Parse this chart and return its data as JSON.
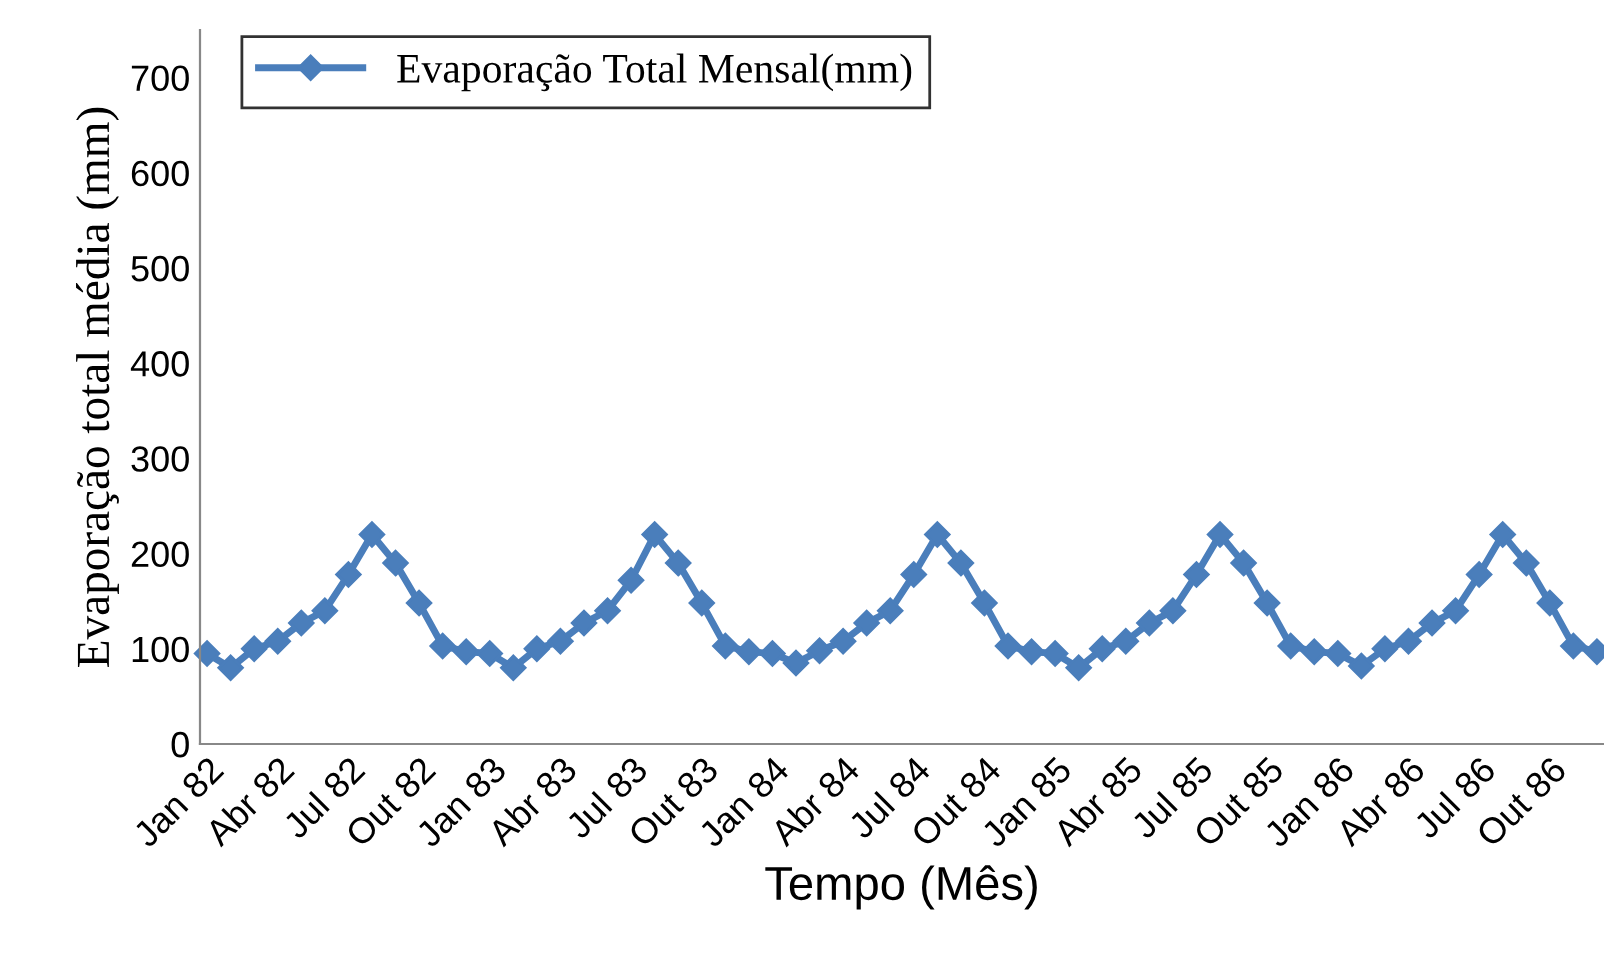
{
  "chart_data": {
    "type": "line",
    "xlabel": "Tempo (Mês)",
    "ylabel": "Evaporação total média (mm)",
    "categories": [
      "Jan 82",
      null,
      null,
      "Abr 82",
      null,
      null,
      "Jul 82",
      null,
      null,
      "Out 82",
      null,
      null,
      "Jan 83",
      null,
      null,
      "Abr 83",
      null,
      null,
      "Jul 83",
      null,
      null,
      "Out 83",
      null,
      null,
      "Jan 84",
      null,
      null,
      "Abr 84",
      null,
      null,
      "Jul 84",
      null,
      null,
      "Out 84",
      null,
      null,
      "Jan 85",
      null,
      null,
      "Abr 85",
      null,
      null,
      "Jul 85",
      null,
      null,
      "Out 85",
      null,
      null,
      "Jan 86",
      null,
      null,
      "Abr 86",
      null,
      null,
      "Jul 86",
      null,
      null,
      "Out 86",
      null,
      null
    ],
    "series": [
      {
        "name": "Evaporação Total Mensal(mm)",
        "color": "#4a7ebb",
        "values": [
          95,
          80,
          100,
          108,
          127,
          140,
          178,
          220,
          190,
          148,
          103,
          97,
          95,
          80,
          100,
          108,
          127,
          140,
          172,
          220,
          190,
          148,
          103,
          97,
          95,
          85,
          98,
          108,
          127,
          140,
          178,
          220,
          190,
          148,
          103,
          97,
          95,
          80,
          100,
          108,
          127,
          140,
          178,
          220,
          190,
          148,
          103,
          97,
          95,
          82,
          100,
          108,
          127,
          140,
          178,
          220,
          190,
          148,
          103,
          97
        ]
      }
    ],
    "ylim": [
      0,
      750
    ],
    "yticks": [
      0,
      100,
      200,
      300,
      400,
      500,
      600,
      700
    ],
    "grid": false,
    "legend": "top left",
    "marker": "diamond",
    "line_style": "solid"
  }
}
